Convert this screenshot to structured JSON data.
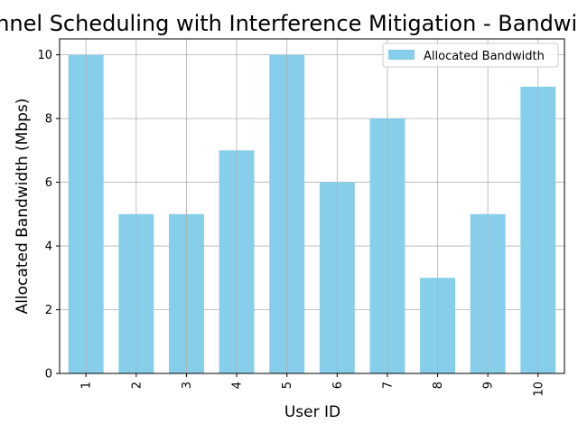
{
  "chart_data": {
    "type": "bar",
    "title": "Dynamic Channel Scheduling with Interference Mitigation - Bandwidth Allocation",
    "xlabel": "User ID",
    "ylabel": "Allocated Bandwidth (Mbps)",
    "categories": [
      "1",
      "2",
      "3",
      "4",
      "5",
      "6",
      "7",
      "8",
      "9",
      "10"
    ],
    "series": [
      {
        "name": "Allocated Bandwidth",
        "values": [
          10,
          5,
          5,
          7,
          10,
          6,
          8,
          3,
          5,
          9
        ],
        "color": "#87ceeb"
      }
    ],
    "ylim": [
      0,
      10.5
    ],
    "yticks": [
      0,
      2,
      4,
      6,
      8,
      10
    ],
    "grid": true,
    "legend_position": "top-right"
  }
}
